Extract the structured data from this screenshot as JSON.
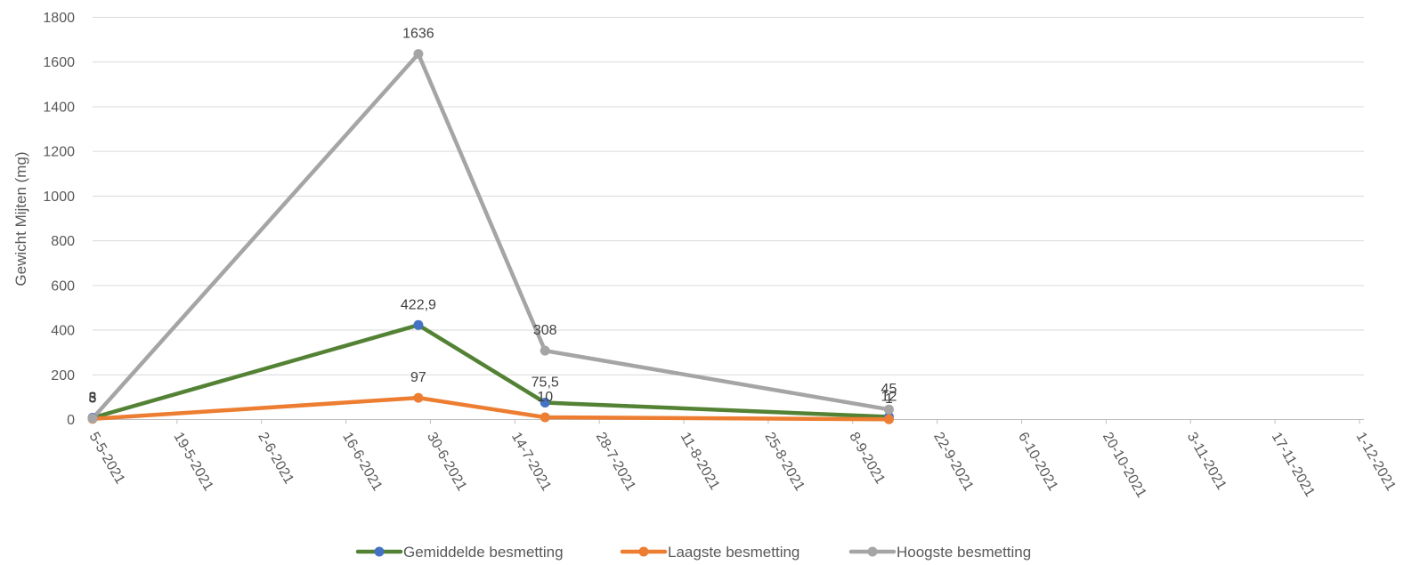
{
  "chart_data": {
    "type": "line",
    "title": "",
    "xlabel": "",
    "ylabel": "Gewicht Mijten (mg)",
    "ylim": [
      0,
      1800
    ],
    "yticks": [
      0,
      200,
      400,
      600,
      800,
      1000,
      1200,
      1400,
      1600,
      1800
    ],
    "xlim": [
      "2021-05-05",
      "2021-12-01"
    ],
    "xticks": [
      "5-5-2021",
      "19-5-2021",
      "2-6-2021",
      "16-6-2021",
      "30-6-2021",
      "14-7-2021",
      "28-7-2021",
      "11-8-2021",
      "25-8-2021",
      "8-9-2021",
      "22-9-2021",
      "6-10-2021",
      "20-10-2021",
      "3-11-2021",
      "17-11-2021",
      "1-12-2021"
    ],
    "x": [
      "2021-05-05",
      "2021-06-28",
      "2021-07-19",
      "2021-09-14"
    ],
    "grid": "horizontal",
    "legend_position": "bottom",
    "series": [
      {
        "name": "Gemiddelde besmetting",
        "values": [
          8,
          422.9,
          75.5,
          12
        ],
        "labels": [
          "8",
          "422,9",
          "75,5",
          "12"
        ],
        "line_color": "#548235",
        "marker_color": "#4472C4"
      },
      {
        "name": "Laagste besmetting",
        "values": [
          3,
          97,
          10,
          1
        ],
        "labels": [
          "3",
          "97",
          "10",
          "1"
        ],
        "line_color": "#ED7D31",
        "marker_color": "#ED7D31"
      },
      {
        "name": "Hoogste besmetting",
        "values": [
          5,
          1636,
          308,
          45
        ],
        "labels": [
          "5",
          "1636",
          "308",
          "45"
        ],
        "line_color": "#A5A5A5",
        "marker_color": "#A5A5A5"
      }
    ]
  }
}
